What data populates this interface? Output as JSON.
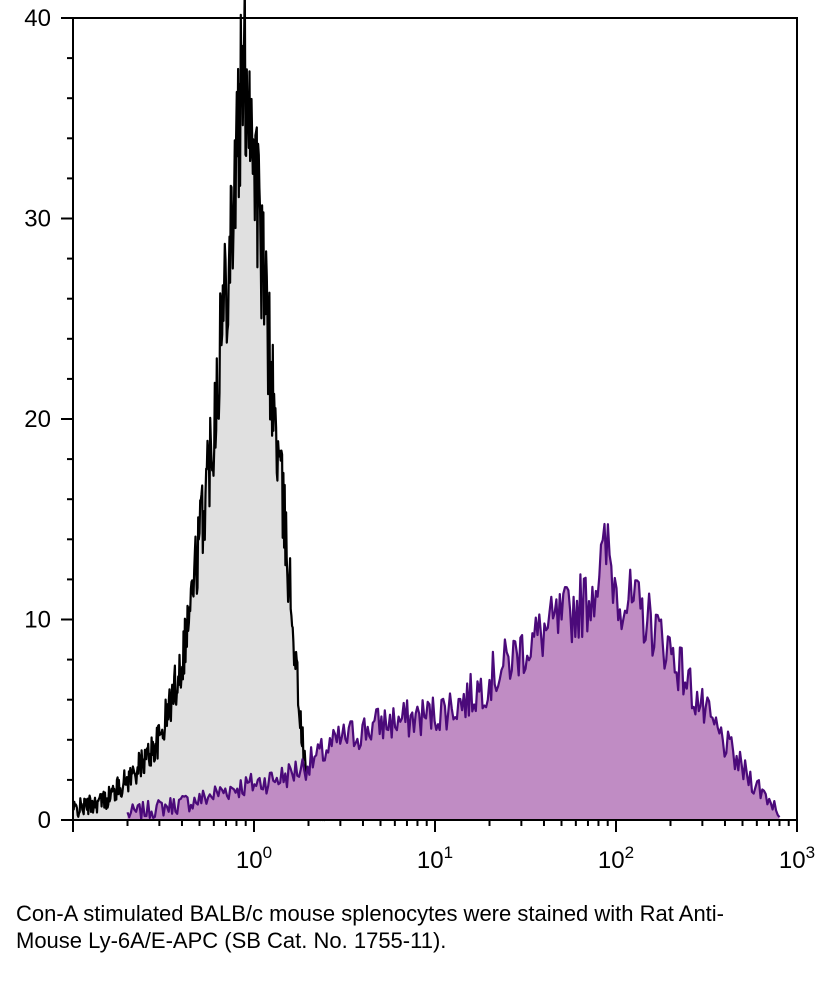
{
  "chart_data": {
    "type": "histogram",
    "x_scale": "log",
    "xlim": [
      0.1,
      1000
    ],
    "ylim": [
      0,
      40
    ],
    "xlabel": "",
    "ylabel": "",
    "y_ticks": [
      "0",
      "10",
      "20",
      "30",
      "40"
    ],
    "x_ticks": [
      {
        "base": "10",
        "exp": "0"
      },
      {
        "base": "10",
        "exp": "1"
      },
      {
        "base": "10",
        "exp": "2"
      },
      {
        "base": "10",
        "exp": "3"
      }
    ],
    "colors": {
      "control_fill": "#e0e0e0",
      "control_line": "#000000",
      "stained_fill": "#c08cc4",
      "stained_line": "#4b0a7a"
    },
    "series": [
      {
        "key": "control",
        "x": [
          0.1,
          0.15,
          0.2,
          0.25,
          0.3,
          0.35,
          0.4,
          0.45,
          0.5,
          0.55,
          0.6,
          0.65,
          0.7,
          0.75,
          0.8,
          0.85,
          0.9,
          0.95,
          1.0,
          1.05,
          1.1,
          1.2,
          1.3,
          1.4,
          1.5,
          1.6,
          1.7,
          1.8,
          1.9,
          2.0,
          2.2,
          2.5
        ],
        "y": [
          0.5,
          1,
          2,
          3,
          4,
          6,
          8,
          11,
          14,
          17,
          20,
          24,
          27,
          30,
          33,
          36,
          37.5,
          36,
          34,
          31,
          28,
          24,
          20,
          17,
          14,
          11,
          8,
          5,
          3,
          1.5,
          0.5,
          0
        ]
      },
      {
        "key": "stained",
        "x": [
          0.2,
          0.3,
          0.5,
          0.7,
          1.0,
          1.5,
          2.0,
          3.0,
          5.0,
          7.0,
          10,
          15,
          20,
          30,
          50,
          70,
          90,
          100,
          150,
          200,
          300,
          500,
          800
        ],
        "y": [
          0.3,
          0.6,
          1.0,
          1.5,
          1.8,
          2.2,
          2.8,
          4.0,
          4.8,
          5.0,
          5.3,
          6.0,
          7.0,
          8.5,
          10.0,
          11.0,
          13.5,
          11.5,
          10.0,
          8.5,
          5.5,
          2.5,
          0.5
        ]
      }
    ]
  },
  "caption": "Con-A stimulated BALB/c mouse splenocytes were stained with Rat Anti-Mouse Ly-6A/E-APC (SB Cat. No. 1755-11)."
}
